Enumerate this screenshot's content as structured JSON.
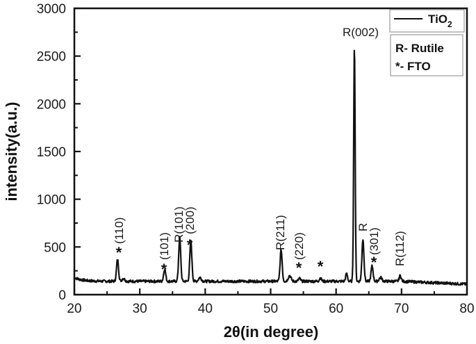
{
  "chart_data": {
    "type": "line",
    "title": "",
    "xlabel": "2θ(in degree)",
    "ylabel": "intensity(a.u.)",
    "xlim": [
      20,
      80
    ],
    "ylim": [
      0,
      3000
    ],
    "x_ticks": [
      20,
      30,
      40,
      50,
      60,
      70,
      80
    ],
    "y_ticks": [
      0,
      500,
      1000,
      1500,
      2000,
      2500,
      3000
    ],
    "grid": false,
    "legend": {
      "position": "top-right",
      "entries": [
        {
          "name": "TiO2",
          "display": "TiO",
          "subscript": "2",
          "style": "solid-line"
        }
      ],
      "notes": [
        "R- Rutile",
        "*- FTO"
      ]
    },
    "series": [
      {
        "name": "TiO2",
        "baseline": 140,
        "peaks": [
          {
            "x": 26.6,
            "y": 370,
            "label": "*(110)",
            "phase": "FTO"
          },
          {
            "x": 33.8,
            "y": 270,
            "label": "*(101)",
            "phase": "FTO"
          },
          {
            "x": 36.1,
            "y": 600,
            "label": "R(101)",
            "phase": "Rutile"
          },
          {
            "x": 37.8,
            "y": 560,
            "label": "*(200)",
            "phase": "FTO"
          },
          {
            "x": 51.6,
            "y": 470,
            "label": "R(211)",
            "phase": "Rutile"
          },
          {
            "x": 54.4,
            "y": 170,
            "label": "*(220)",
            "phase": "FTO"
          },
          {
            "x": 57.6,
            "y": 175,
            "label": "*",
            "phase": "FTO"
          },
          {
            "x": 62.8,
            "y": 2610,
            "label": "R(002)",
            "phase": "Rutile"
          },
          {
            "x": 64.1,
            "y": 580,
            "label": "R",
            "phase": "Rutile"
          },
          {
            "x": 65.5,
            "y": 300,
            "label": "*(301)",
            "phase": "FTO"
          },
          {
            "x": 69.8,
            "y": 200,
            "label": "R(112)",
            "phase": "Rutile"
          }
        ]
      }
    ],
    "annotations": [
      {
        "text": "*(110)",
        "x": 26.6
      },
      {
        "text": "*(101)",
        "x": 33.8
      },
      {
        "text": "R(101)",
        "x": 36.1
      },
      {
        "text": "*(200)",
        "x": 37.8
      },
      {
        "text": "R(211)",
        "x": 51.6
      },
      {
        "text": "*(220)",
        "x": 54.4
      },
      {
        "text": "*",
        "x": 57.6
      },
      {
        "text": "R(002)",
        "x": 62.8
      },
      {
        "text": "R",
        "x": 64.1
      },
      {
        "text": "*(301)",
        "x": 65.5
      },
      {
        "text": "R(112)",
        "x": 69.8
      }
    ]
  },
  "labels": {
    "x_axis_title_theta": "2θ",
    "x_axis_title_rest": "(in degree)",
    "y_axis_title": "intensity(a.u.)",
    "legend_series": "TiO",
    "legend_series_sub": "2",
    "legend_note_rutile": "R- Rutile",
    "legend_note_fto": "*- FTO"
  }
}
